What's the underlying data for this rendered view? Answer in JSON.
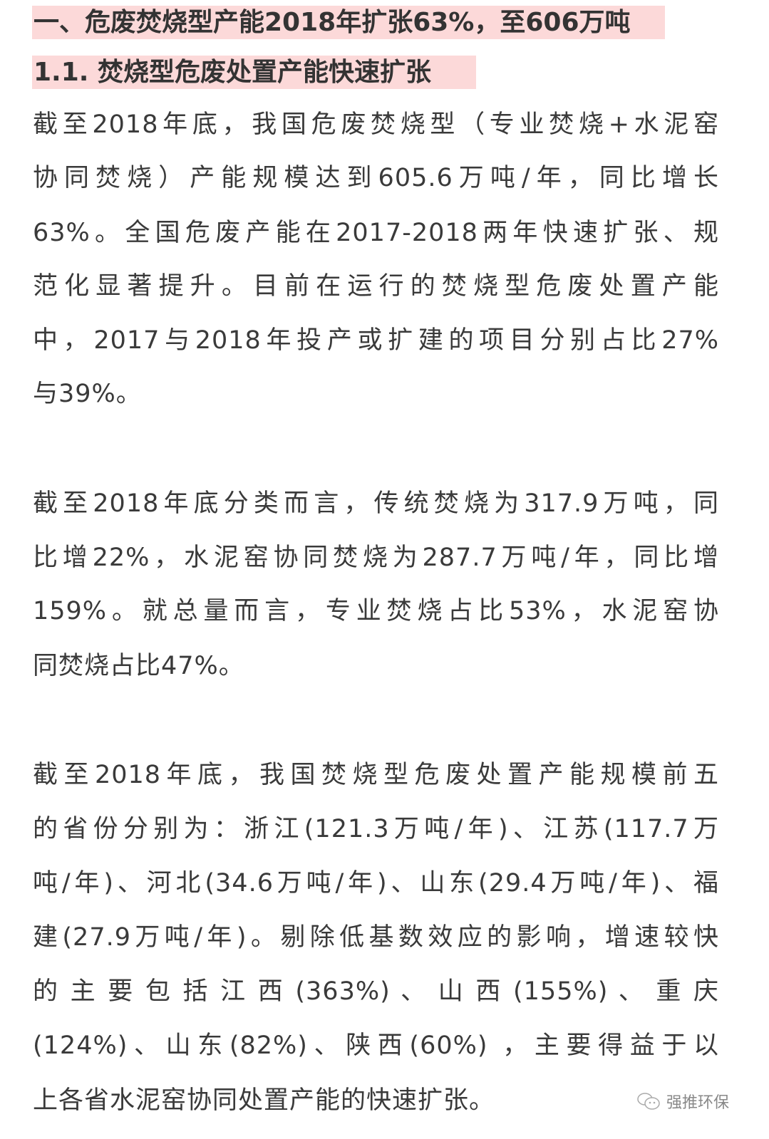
{
  "headings": {
    "h1": "一、危废焚烧型产能2018年扩张63%，至606万吨",
    "h2": "1.1. 焚烧型危废处置产能快速扩张"
  },
  "paragraphs": [
    {
      "lines": [
        "截至2018年底，我国危废焚烧型（专业焚烧+水泥窑",
        "协同焚烧）产能规模达到605.6万吨/年，同比增长",
        "63%。全国危废产能在2017-2018两年快速扩张、规",
        "范化显著提升。目前在运行的焚烧型危废处置产能",
        "中，2017与2018年投产或扩建的项目分别占比27%",
        "与39%。"
      ]
    },
    {
      "lines": [
        "截至2018年底分类而言，传统焚烧为317.9万吨，同",
        "比增22%，水泥窑协同焚烧为287.7万吨/年，同比增",
        "159%。就总量而言，专业焚烧占比53%，水泥窑协",
        "同焚烧占比47%。"
      ]
    },
    {
      "lines": [
        "截至2018年底，我国焚烧型危废处置产能规模前五",
        "的省份分别为：浙江(121.3万吨/年)、江苏(117.7万",
        "吨/年)、河北(34.6万吨/年)、山东(29.4万吨/年)、福",
        "建(27.9万吨/年)。剔除低基数效应的影响，增速较快",
        "的 主 要 包 括 江 西 (363%) 、 山 西 (155%) 、 重 庆",
        "(124%)、山东(82%)、陕西(60%) ，主要得益于以",
        "上各省水泥窑协同处置产能的快速扩张。"
      ]
    }
  ],
  "watermark": {
    "icon": "wechat-icon",
    "text": "强推环保"
  },
  "colors": {
    "heading_highlight": "#fcd9d9",
    "text": "#3a3a3a"
  }
}
